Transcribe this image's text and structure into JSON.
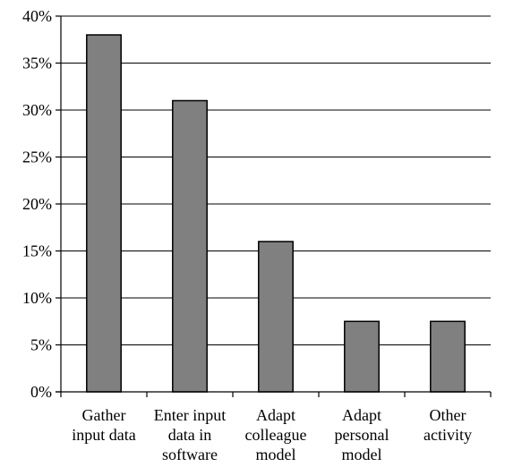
{
  "chart_data": {
    "type": "bar",
    "categories": [
      [
        "Gather",
        "input data"
      ],
      [
        "Enter input",
        "data in",
        "software"
      ],
      [
        "Adapt",
        "colleague",
        "model"
      ],
      [
        "Adapt",
        "personal",
        "model"
      ],
      [
        "Other",
        "activity"
      ]
    ],
    "values": [
      38,
      31,
      16,
      7.5,
      7.5
    ],
    "y_tick_labels": [
      "0%",
      "5%",
      "10%",
      "15%",
      "20%",
      "25%",
      "30%",
      "35%",
      "40%"
    ],
    "ylim": [
      0,
      40
    ],
    "y_tick_step": 5,
    "grid": true,
    "title": "",
    "xlabel": "",
    "ylabel": "",
    "bar_color": "#808080",
    "bar_edge_color": "#000000"
  }
}
